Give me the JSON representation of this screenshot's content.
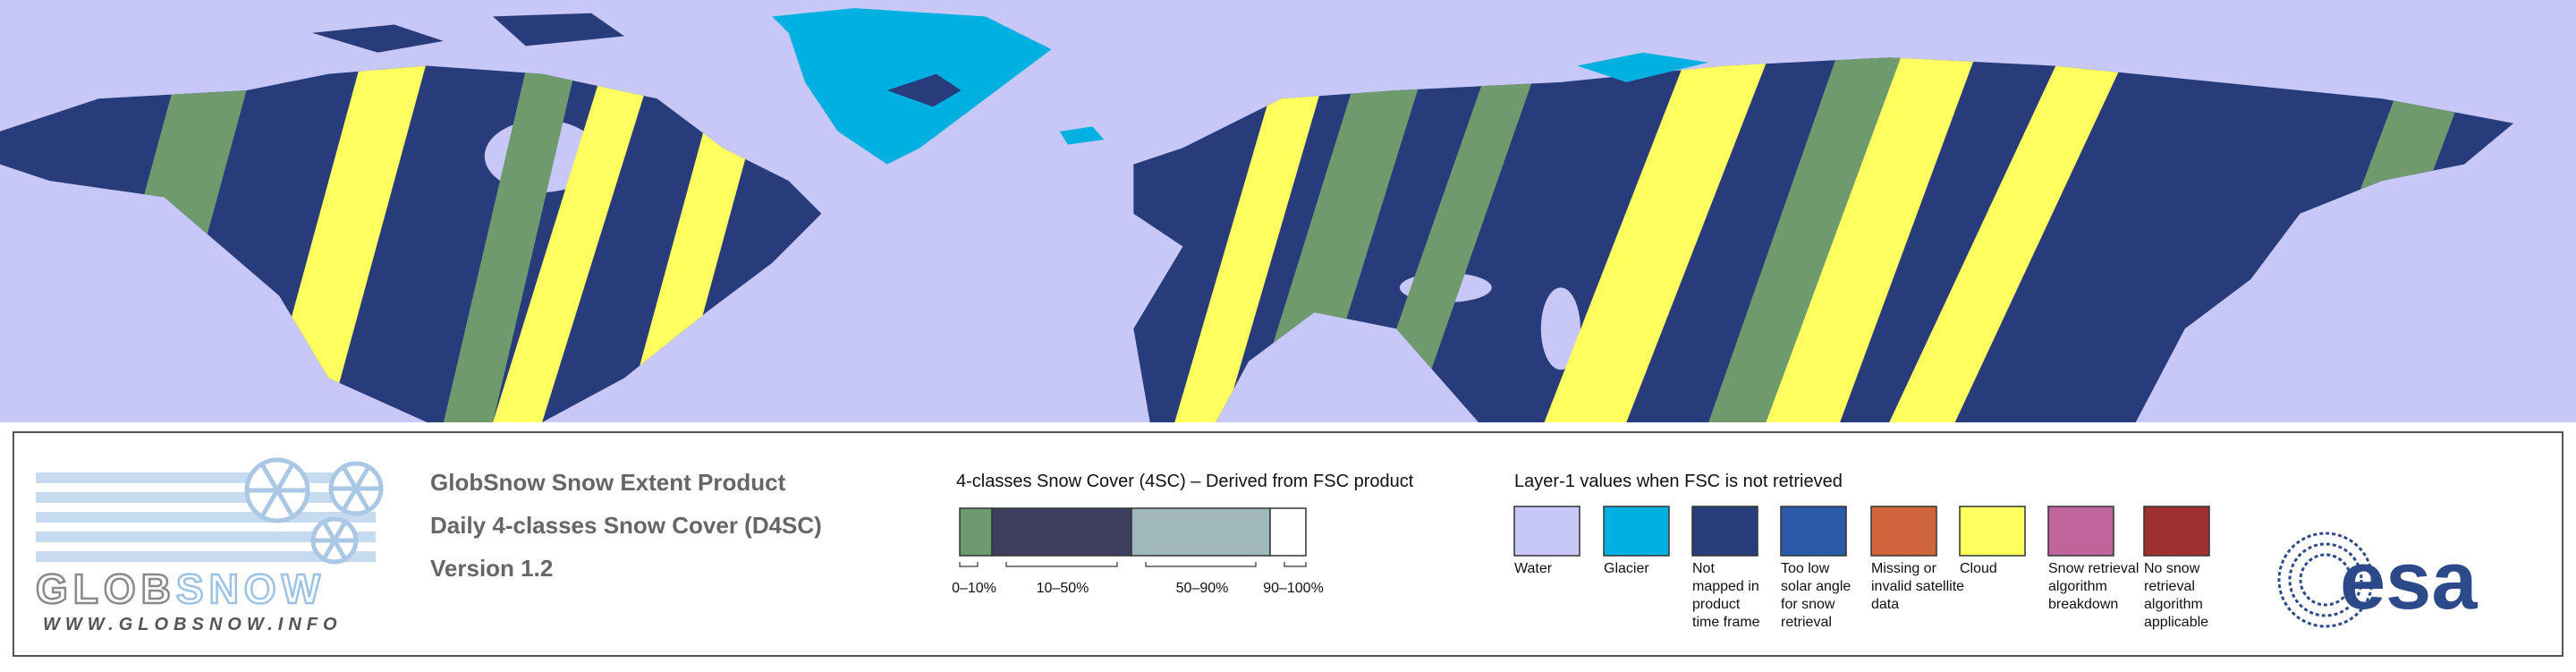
{
  "logo": {
    "wordmark": [
      "GLOB",
      "SNOW"
    ],
    "url": "WWW.GLOBSNOW.INFO"
  },
  "product": {
    "lines": [
      "GlobSnow Snow Extent Product",
      "Daily 4-classes Snow Cover (D4SC)",
      "Version 1.2"
    ]
  },
  "snow_cover_legend": {
    "title": "4-classes Snow Cover (4SC) – Derived from FSC product",
    "classes": [
      {
        "label": "0–10%",
        "color": "#6e9a6e"
      },
      {
        "label": "10–50%",
        "color": "#3e3e5e"
      },
      {
        "label": "50–90%",
        "color": "#a0b8bc"
      },
      {
        "label": "90–100%",
        "color": "#ffffff"
      }
    ]
  },
  "layer1_legend": {
    "title": "Layer-1 values when FSC is not retrieved",
    "items": [
      {
        "label": [
          "Water"
        ],
        "color": "#c8c8f8"
      },
      {
        "label": [
          "Glacier"
        ],
        "color": "#00b0e0"
      },
      {
        "label": [
          "Not",
          "mapped in",
          "product",
          "time frame"
        ],
        "color": "#283c7c"
      },
      {
        "label": [
          "Too low",
          "solar angle",
          "for snow",
          "retrieval"
        ],
        "color": "#2c5aa8"
      },
      {
        "label": [
          "Missing or",
          "invalid satellite",
          "data"
        ],
        "color": "#d0643c"
      },
      {
        "label": [
          "Cloud"
        ],
        "color": "#ffff60"
      },
      {
        "label": [
          "Snow retrieval",
          "algorithm",
          "breakdown"
        ],
        "color": "#c0649c"
      },
      {
        "label": [
          "No snow",
          "retrieval",
          "algorithm",
          "applicable"
        ],
        "color": "#a03030"
      }
    ]
  },
  "agency": {
    "name": "esa"
  }
}
